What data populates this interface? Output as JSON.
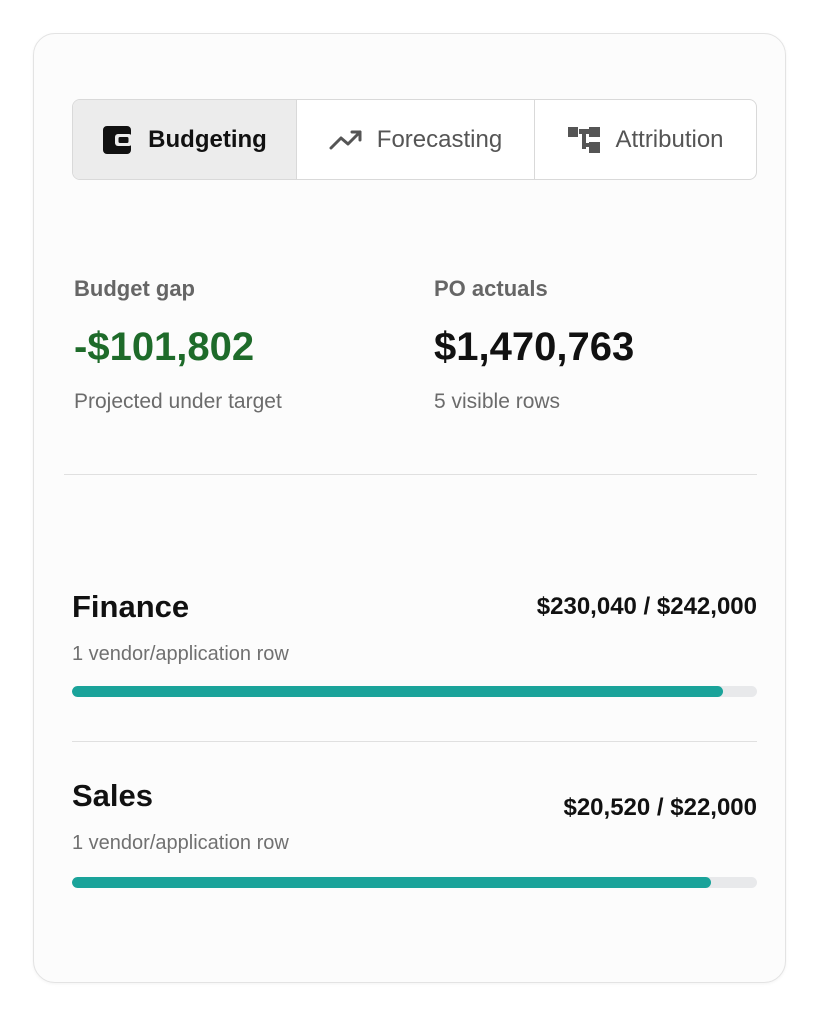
{
  "tabs": [
    {
      "label": "Budgeting",
      "icon": "wallet-icon",
      "active": true
    },
    {
      "label": "Forecasting",
      "icon": "trend-up-icon",
      "active": false
    },
    {
      "label": "Attribution",
      "icon": "hierarchy-icon",
      "active": false
    }
  ],
  "metrics": {
    "budget_gap": {
      "label": "Budget gap",
      "value": "-$101,802",
      "sub": "Projected under target",
      "color": "#1e6b2a"
    },
    "po_actuals": {
      "label": "PO actuals",
      "value": "$1,470,763",
      "sub": "5 visible rows"
    }
  },
  "departments": [
    {
      "name": "Finance",
      "amount": "$230,040 / $242,000",
      "sub": "1 vendor/application row",
      "progress": 0.9506
    },
    {
      "name": "Sales",
      "amount": "$20,520 / $22,000",
      "sub": "1 vendor/application row",
      "progress": 0.9327
    }
  ],
  "colors": {
    "accent": "#1aa39a",
    "track": "#e8e9eb",
    "negative": "#1e6b2a"
  }
}
